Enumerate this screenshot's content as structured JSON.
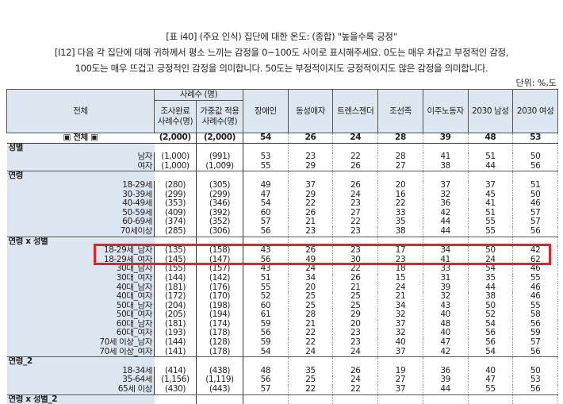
{
  "title": "[표 i40] (주요 인식) 집단에 대한 온도: (종합) \"높을수록 긍정\"",
  "question_line1": "[I12] 다음 각 집단에 대해 귀하께서 평소 느끼는 감정을 0~100도 사이로 표시해주세요. 0도는 매우 차갑고 부정적인 감정,",
  "question_line2": "100도는 매우 뜨겁고 긍정적인 감정을 의미합니다. 50도는 부정적이지도 긍정적이지도 않은 감정을 의미합니다.",
  "unit": "단위: %,도",
  "header": {
    "row_label": "전체",
    "sample_group": "사례수 (명)",
    "sample_completed": "조사완료 사례수(명)",
    "sample_weighted": "가중값 적용 사례수(명)",
    "columns": [
      "장애인",
      "동성애자",
      "트렌스젠더",
      "조선족",
      "이주노동자",
      "2030 남성",
      "2030 여성"
    ]
  },
  "total": {
    "label": "▣ 전체 ▣",
    "n1": "(2,000)",
    "n2": "(2,000)",
    "values": [
      54,
      26,
      24,
      28,
      39,
      48,
      53
    ]
  },
  "sections": [
    {
      "title": "성별",
      "rows": [
        {
          "label": "남자",
          "n1": "(1,000)",
          "n2": "(991)",
          "values": [
            53,
            23,
            22,
            28,
            41,
            51,
            50
          ]
        },
        {
          "label": "여자",
          "n1": "(1,000)",
          "n2": "(1,009)",
          "values": [
            55,
            29,
            26,
            27,
            38,
            44,
            56
          ]
        }
      ]
    },
    {
      "title": "연령",
      "rows": [
        {
          "label": "18-29세",
          "n1": "(280)",
          "n2": "(305)",
          "values": [
            49,
            37,
            26,
            20,
            37,
            37,
            51
          ]
        },
        {
          "label": "30-39세",
          "n1": "(299)",
          "n2": "(299)",
          "values": [
            47,
            29,
            24,
            16,
            32,
            45,
            50
          ]
        },
        {
          "label": "40-49세",
          "n1": "(353)",
          "n2": "(346)",
          "values": [
            54,
            22,
            23,
            22,
            36,
            41,
            46
          ]
        },
        {
          "label": "50-59세",
          "n1": "(409)",
          "n2": "(392)",
          "values": [
            60,
            26,
            27,
            33,
            42,
            51,
            57
          ]
        },
        {
          "label": "60-69세",
          "n1": "(374)",
          "n2": "(352)",
          "values": [
            57,
            21,
            22,
            35,
            44,
            55,
            57
          ]
        },
        {
          "label": "70세이상",
          "n1": "(285)",
          "n2": "(306)",
          "values": [
            56,
            23,
            23,
            38,
            44,
            55,
            56
          ]
        }
      ]
    },
    {
      "title": "연령 x 성별",
      "rows": [
        {
          "label": "18-29세_남자",
          "n1": "(135)",
          "n2": "(158)",
          "values": [
            43,
            26,
            23,
            17,
            34,
            50,
            42
          ]
        },
        {
          "label": "18-29세_여자",
          "n1": "(145)",
          "n2": "(147)",
          "values": [
            56,
            49,
            30,
            23,
            41,
            24,
            62
          ],
          "highlighted": true
        },
        {
          "label": "30대_남자",
          "n1": "(155)",
          "n2": "(157)",
          "values": [
            43,
            24,
            22,
            18,
            33,
            54,
            46
          ]
        },
        {
          "label": "30대_여자",
          "n1": "(144)",
          "n2": "(142)",
          "values": [
            51,
            34,
            26,
            15,
            31,
            35,
            55
          ]
        },
        {
          "label": "40대_남자",
          "n1": "(181)",
          "n2": "(176)",
          "values": [
            55,
            20,
            21,
            24,
            39,
            44,
            46
          ]
        },
        {
          "label": "40대_여자",
          "n1": "(172)",
          "n2": "(170)",
          "values": [
            52,
            25,
            25,
            21,
            32,
            38,
            46
          ]
        },
        {
          "label": "50대_남자",
          "n1": "(204)",
          "n2": "(198)",
          "values": [
            60,
            25,
            25,
            34,
            43,
            50,
            55
          ]
        },
        {
          "label": "50대_여자",
          "n1": "(205)",
          "n2": "(194)",
          "values": [
            61,
            28,
            29,
            32,
            40,
            52,
            58
          ]
        },
        {
          "label": "60대_남자",
          "n1": "(181)",
          "n2": "(174)",
          "values": [
            59,
            21,
            20,
            37,
            48,
            54,
            56
          ]
        },
        {
          "label": "60대_여자",
          "n1": "(193)",
          "n2": "(178)",
          "values": [
            56,
            22,
            23,
            32,
            40,
            56,
            59
          ]
        },
        {
          "label": "70세 이상_남자",
          "n1": "(144)",
          "n2": "(128)",
          "values": [
            59,
            22,
            23,
            40,
            47,
            56,
            57
          ]
        },
        {
          "label": "70세 이상_여자",
          "n1": "(141)",
          "n2": "(178)",
          "values": [
            54,
            24,
            24,
            37,
            42,
            54,
            56
          ]
        }
      ]
    },
    {
      "title": "연령_2",
      "rows": [
        {
          "label": "18-34세",
          "n1": "(414)",
          "n2": "(438)",
          "values": [
            48,
            35,
            26,
            19,
            36,
            40,
            50
          ]
        },
        {
          "label": "35-64세",
          "n1": "(1,156)",
          "n2": "(1,119)",
          "values": [
            56,
            25,
            24,
            27,
            39,
            47,
            53
          ]
        },
        {
          "label": "65세 이상",
          "n1": "(430)",
          "n2": "(443)",
          "values": [
            57,
            22,
            22,
            37,
            44,
            55,
            56
          ]
        }
      ]
    },
    {
      "title": "연령 x 성별_2",
      "rows": []
    }
  ],
  "highlight_color": "#e5202a",
  "header_bg": "#dce6f1"
}
